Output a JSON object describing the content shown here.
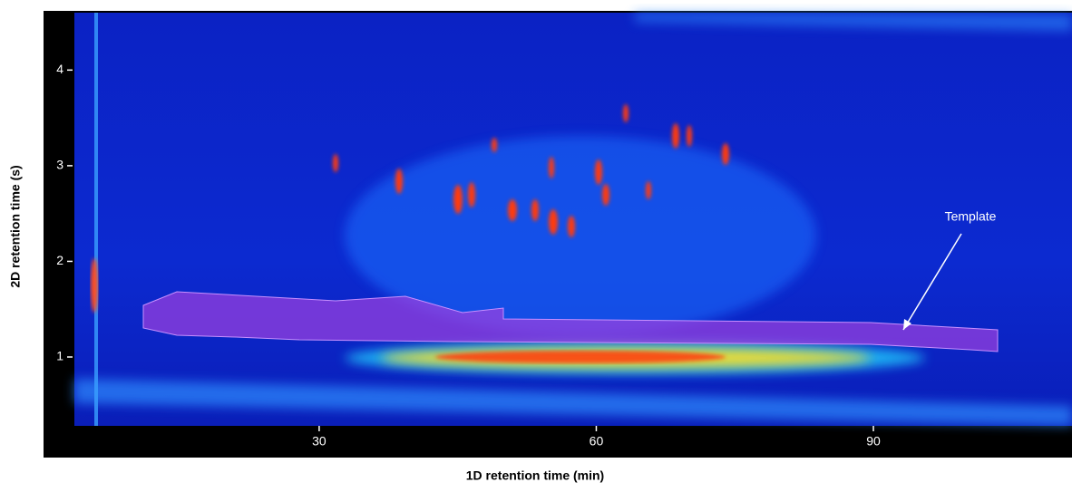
{
  "chart_data": {
    "type": "heatmap",
    "xlabel": "1D retention time (min)",
    "ylabel": "2D retention time (s)",
    "annotation": "Template",
    "xlim": [
      3.5,
      111.5
    ],
    "xticks": [
      30,
      60,
      90
    ],
    "ylim": [
      0.28,
      4.6
    ],
    "yticks": [
      1,
      2,
      3,
      4
    ]
  }
}
